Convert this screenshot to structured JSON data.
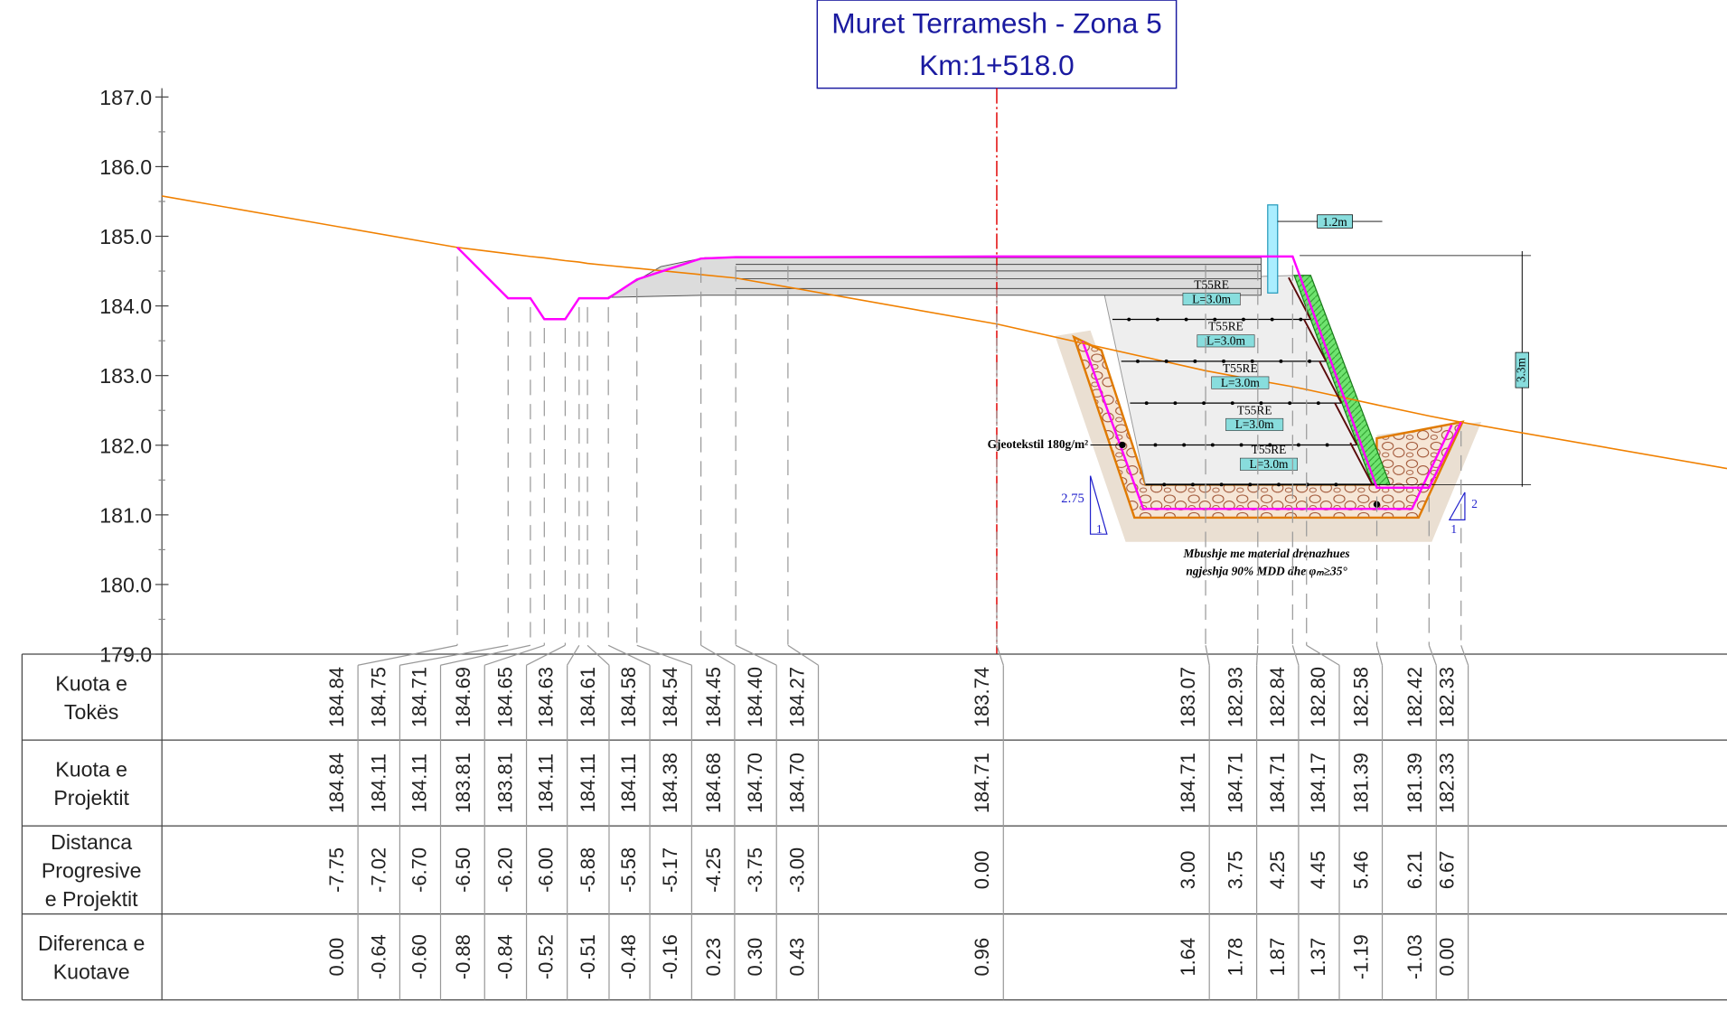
{
  "title": {
    "line1": "Muret Terramesh - Zona 5",
    "line2": "Km:1+518.0"
  },
  "axis": {
    "ticks": [
      {
        "value": 187,
        "label": "187.0"
      },
      {
        "value": 186,
        "label": "186.0"
      },
      {
        "value": 185,
        "label": "185.0"
      },
      {
        "value": 184,
        "label": "184.0"
      },
      {
        "value": 183,
        "label": "183.0"
      },
      {
        "value": 182,
        "label": "182.0"
      },
      {
        "value": 181,
        "label": "181.0"
      },
      {
        "value": 180,
        "label": "180.0"
      },
      {
        "value": 179,
        "label": "179.0"
      }
    ]
  },
  "drawing": {
    "reinforcement": [
      {
        "type": "T55RE",
        "length": "L=3.0m"
      },
      {
        "type": "T55RE",
        "length": "L=3.0m"
      },
      {
        "type": "T55RE",
        "length": "L=3.0m"
      },
      {
        "type": "T55RE",
        "length": "L=3.0m"
      },
      {
        "type": "T55RE",
        "length": "L=3.0m"
      }
    ],
    "top_width": "1.2m",
    "height": "3.3m",
    "geotextile": "Gjeotekstil 180g/m²",
    "slope_left": {
      "rise": "2.75",
      "run": "1"
    },
    "slope_right": {
      "rise": "2",
      "run": "1"
    },
    "fill_note": [
      "Mbushje me material drenazhues",
      "ngjeshja 90%  MDD dhe φₘ≥35°"
    ]
  },
  "table": {
    "rows": [
      {
        "label": [
          "Kuota e",
          "Tokës"
        ],
        "values": [
          "184.84",
          "184.75",
          "184.71",
          "184.69",
          "184.65",
          "184.63",
          "184.61",
          "184.58",
          "184.54",
          "184.45",
          "184.40",
          "184.27",
          "183.74",
          "183.07",
          "182.93",
          "182.84",
          "182.80",
          "182.58",
          "182.42",
          "182.33"
        ]
      },
      {
        "label": [
          "Kuota e",
          "Projektit"
        ],
        "values": [
          "184.84",
          "184.11",
          "184.11",
          "183.81",
          "183.81",
          "184.11",
          "184.11",
          "184.11",
          "184.38",
          "184.68",
          "184.70",
          "184.70",
          "184.71",
          "184.71",
          "184.71",
          "184.71",
          "184.17",
          "181.39",
          "181.39",
          "182.33"
        ]
      },
      {
        "label": [
          "Distanca",
          "Progresive",
          "e Projektit"
        ],
        "values": [
          "-7.75",
          "-7.02",
          "-6.70",
          "-6.50",
          "-6.20",
          "-6.00",
          "-5.88",
          "-5.58",
          "-5.17",
          "-4.25",
          "-3.75",
          "-3.00",
          "0.00",
          "3.00",
          "3.75",
          "4.25",
          "4.45",
          "5.46",
          "6.21",
          "6.67"
        ]
      },
      {
        "label": [
          "Diferenca e",
          "Kuotave"
        ],
        "values": [
          "0.00",
          "-0.64",
          "-0.60",
          "-0.88",
          "-0.84",
          "-0.52",
          "-0.51",
          "-0.48",
          "-0.16",
          "0.23",
          "0.30",
          "0.43",
          "0.96",
          "1.64",
          "1.78",
          "1.87",
          "1.37",
          "-1.19",
          "-1.03",
          "0.00"
        ]
      }
    ]
  }
}
